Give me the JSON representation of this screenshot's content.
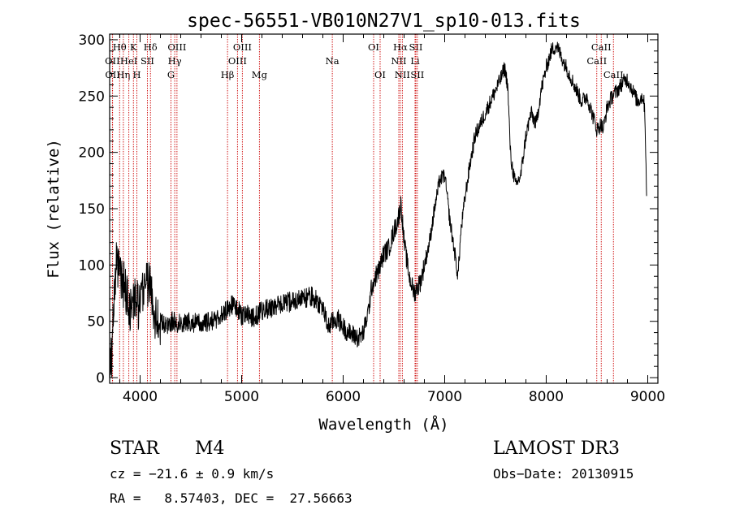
{
  "chart_data": {
    "type": "line",
    "title": "spec-56551-VB010N27V1_sp10-013.fits",
    "xlabel": "Wavelength (Å)",
    "ylabel": "Flux (relative)",
    "xlim": [
      3700,
      9100
    ],
    "ylim": [
      -5,
      305
    ],
    "xticks": [
      4000,
      5000,
      6000,
      7000,
      8000,
      9000
    ],
    "yticks": [
      0,
      50,
      100,
      150,
      200,
      250,
      300
    ],
    "spectrum_anchors": {
      "x": [
        3700,
        3720,
        3760,
        3800,
        3850,
        3900,
        3950,
        4000,
        4050,
        4100,
        4150,
        4200,
        4250,
        4300,
        4400,
        4500,
        4600,
        4700,
        4800,
        4850,
        4900,
        4950,
        5000,
        5050,
        5100,
        5150,
        5200,
        5300,
        5400,
        5500,
        5600,
        5700,
        5800,
        5850,
        5900,
        5950,
        6000,
        6050,
        6100,
        6150,
        6200,
        6250,
        6280,
        6320,
        6350,
        6400,
        6450,
        6500,
        6540,
        6570,
        6600,
        6650,
        6700,
        6730,
        6760,
        6800,
        6850,
        6900,
        6950,
        7000,
        7050,
        7100,
        7130,
        7160,
        7200,
        7250,
        7300,
        7350,
        7400,
        7450,
        7500,
        7550,
        7590,
        7620,
        7650,
        7700,
        7750,
        7800,
        7850,
        7900,
        7950,
        8000,
        8050,
        8100,
        8150,
        8200,
        8250,
        8300,
        8350,
        8400,
        8450,
        8500,
        8540,
        8560,
        8600,
        8650,
        8700,
        8750,
        8800,
        8850,
        8900,
        8950,
        8970,
        8990
      ],
      "flux": [
        0,
        20,
        100,
        90,
        80,
        60,
        70,
        60,
        90,
        80,
        55,
        50,
        45,
        50,
        48,
        50,
        47,
        50,
        55,
        60,
        65,
        62,
        55,
        58,
        52,
        55,
        60,
        62,
        65,
        68,
        70,
        72,
        62,
        45,
        50,
        52,
        45,
        40,
        38,
        35,
        40,
        60,
        80,
        90,
        95,
        110,
        115,
        130,
        140,
        155,
        120,
        90,
        75,
        80,
        85,
        100,
        120,
        150,
        175,
        180,
        140,
        110,
        90,
        130,
        160,
        190,
        215,
        225,
        235,
        245,
        255,
        265,
        275,
        260,
        195,
        170,
        180,
        215,
        235,
        225,
        255,
        275,
        290,
        295,
        285,
        275,
        265,
        255,
        245,
        250,
        235,
        220,
        225,
        220,
        240,
        250,
        255,
        262,
        265,
        255,
        245,
        250,
        240,
        160
      ],
      "seed": 56551
    },
    "spectral_lines": [
      {
        "name": "Hθ",
        "wavelength": 3798,
        "row": 0
      },
      {
        "name": "OII",
        "wavelength": 3727,
        "row": 1
      },
      {
        "name": "OII",
        "wavelength": 3729,
        "row": 2
      },
      {
        "name": "Hη",
        "wavelength": 3835,
        "row": 2
      },
      {
        "name": "HeI",
        "wavelength": 3889,
        "row": 1
      },
      {
        "name": "K",
        "wavelength": 3934,
        "row": 0
      },
      {
        "name": "H",
        "wavelength": 3968,
        "row": 2
      },
      {
        "name": "SII",
        "wavelength": 4072,
        "row": 1
      },
      {
        "name": "Hδ",
        "wavelength": 4102,
        "row": 0
      },
      {
        "name": "G",
        "wavelength": 4304,
        "row": 2
      },
      {
        "name": "Hγ",
        "wavelength": 4341,
        "row": 1
      },
      {
        "name": "OIII",
        "wavelength": 4363,
        "row": 0
      },
      {
        "name": "Hβ",
        "wavelength": 4861,
        "row": 2
      },
      {
        "name": "OIII",
        "wavelength": 4959,
        "row": 1
      },
      {
        "name": "OIII",
        "wavelength": 5007,
        "row": 0
      },
      {
        "name": "Mg",
        "wavelength": 5175,
        "row": 2
      },
      {
        "name": "Na",
        "wavelength": 5893,
        "row": 1
      },
      {
        "name": "OI",
        "wavelength": 6300,
        "row": 0
      },
      {
        "name": "OI",
        "wavelength": 6364,
        "row": 2
      },
      {
        "name": "NII",
        "wavelength": 6548,
        "row": 1
      },
      {
        "name": "Hα",
        "wavelength": 6563,
        "row": 0
      },
      {
        "name": "NII",
        "wavelength": 6583,
        "row": 2
      },
      {
        "name": "Li",
        "wavelength": 6708,
        "row": 1
      },
      {
        "name": "SII",
        "wavelength": 6716,
        "row": 0
      },
      {
        "name": "SII",
        "wavelength": 6731,
        "row": 2
      },
      {
        "name": "CaII",
        "wavelength": 8498,
        "row": 1
      },
      {
        "name": "CaII",
        "wavelength": 8542,
        "row": 0
      },
      {
        "name": "CaII",
        "wavelength": 8662,
        "row": 2
      }
    ],
    "colors": {
      "spectrum": "#000000",
      "lines": "#cc0000",
      "axes": "#000000"
    }
  },
  "info": {
    "class": "STAR",
    "subclass": "M4",
    "survey": "LAMOST DR3",
    "cz": "cz = −21.6 ± 0.9 km/s",
    "obs_date": "Obs−Date: 20130915",
    "coords": "RA =   8.57403, DEC =  27.56663"
  }
}
